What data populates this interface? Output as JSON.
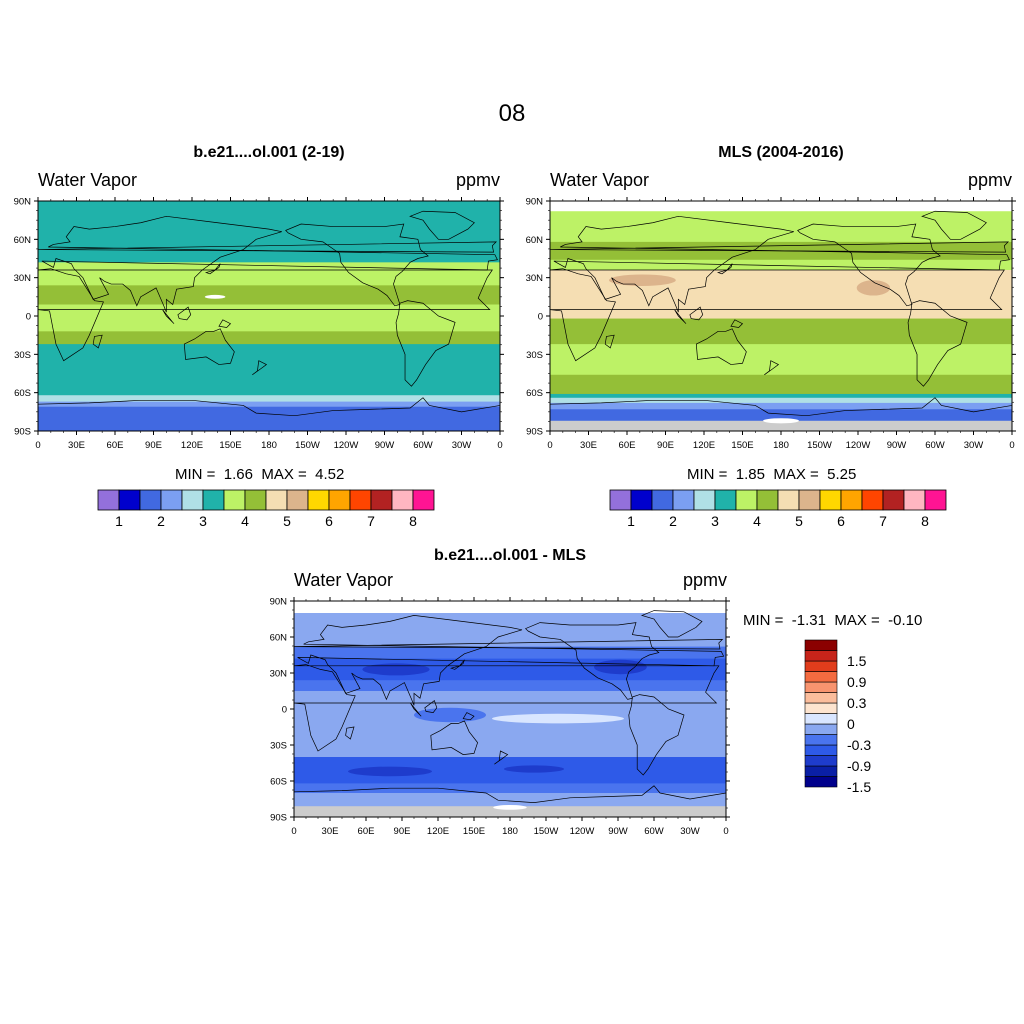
{
  "figure": {
    "title": "08"
  },
  "colors": {
    "water_vapor_scale": [
      "#9370db",
      "#0000cd",
      "#4169e1",
      "#7b9ff2",
      "#b0e0e6",
      "#20b2aa",
      "#bdf266",
      "#94bf37",
      "#f5deb3",
      "#dcb48c",
      "#ffd700",
      "#ffa500",
      "#ff4500",
      "#b22222",
      "#ffb6c1",
      "#ff1493"
    ],
    "difference_scale": [
      "#00008b",
      "#0a1fa6",
      "#1e3ccc",
      "#2e5ae8",
      "#4a74ee",
      "#8aa8f0",
      "#d9e6ff",
      "#fde4cf",
      "#fbbd9c",
      "#f8946f",
      "#f46b40",
      "#e13d1c",
      "#c7241a",
      "#8b0000"
    ],
    "land_outline": "#000000",
    "missing": "#cccccc"
  },
  "axes": {
    "lat_ticks": [
      "90N",
      "60N",
      "30N",
      "0",
      "30S",
      "60S",
      "90S"
    ],
    "lon_ticks": [
      "0",
      "30E",
      "60E",
      "90E",
      "120E",
      "150E",
      "180",
      "150W",
      "120W",
      "90W",
      "60W",
      "30W",
      "0"
    ]
  },
  "panels": [
    {
      "title": "b.e21....ol.001 (2-19)",
      "left_label": "Water Vapor",
      "right_label": "ppmv",
      "min_label": "MIN =",
      "min_value": "1.66",
      "max_label": "MAX =",
      "max_value": "4.52",
      "colorbar_labels": [
        "1",
        "2",
        "3",
        "4",
        "5",
        "6",
        "7",
        "8"
      ]
    },
    {
      "title": "MLS (2004-2016)",
      "left_label": "Water Vapor",
      "right_label": "ppmv",
      "min_label": "MIN =",
      "min_value": "1.85",
      "max_label": "MAX =",
      "max_value": "5.25",
      "colorbar_labels": [
        "1",
        "2",
        "3",
        "4",
        "5",
        "6",
        "7",
        "8"
      ]
    },
    {
      "title": "b.e21....ol.001 - MLS",
      "left_label": "Water Vapor",
      "right_label": "ppmv",
      "min_label": "MIN =",
      "min_value": "-1.31",
      "max_label": "MAX =",
      "max_value": "-0.10",
      "colorbar_labels": [
        "1.5",
        "0.9",
        "0.3",
        "0",
        "-0.3",
        "-0.9",
        "-1.5"
      ]
    }
  ]
}
